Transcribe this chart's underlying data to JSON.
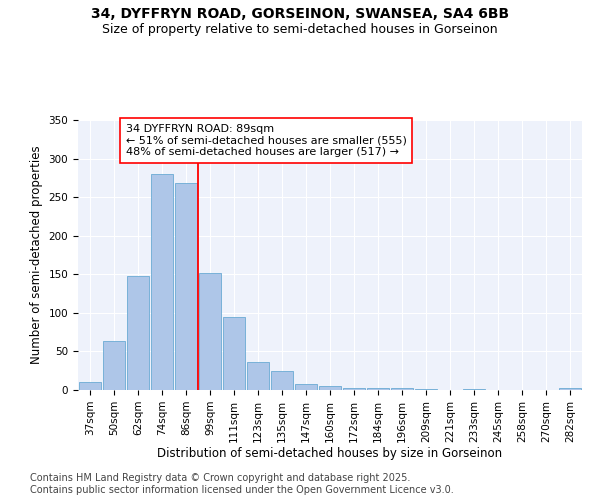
{
  "title_line1": "34, DYFFRYN ROAD, GORSEINON, SWANSEA, SA4 6BB",
  "title_line2": "Size of property relative to semi-detached houses in Gorseinon",
  "xlabel": "Distribution of semi-detached houses by size in Gorseinon",
  "ylabel": "Number of semi-detached properties",
  "categories": [
    "37sqm",
    "50sqm",
    "62sqm",
    "74sqm",
    "86sqm",
    "99sqm",
    "111sqm",
    "123sqm",
    "135sqm",
    "147sqm",
    "160sqm",
    "172sqm",
    "184sqm",
    "196sqm",
    "209sqm",
    "221sqm",
    "233sqm",
    "245sqm",
    "258sqm",
    "270sqm",
    "282sqm"
  ],
  "values": [
    10,
    63,
    148,
    280,
    268,
    152,
    95,
    36,
    24,
    8,
    5,
    3,
    3,
    3,
    1,
    0,
    1,
    0,
    0,
    0,
    2
  ],
  "bar_color": "#aec6e8",
  "bar_edge_color": "#6aaad4",
  "vline_x": 4.5,
  "vline_color": "red",
  "annotation_text": "34 DYFFRYN ROAD: 89sqm\n← 51% of semi-detached houses are smaller (555)\n48% of semi-detached houses are larger (517) →",
  "annotation_box_color": "white",
  "annotation_box_edge": "red",
  "ylim": [
    0,
    350
  ],
  "yticks": [
    0,
    50,
    100,
    150,
    200,
    250,
    300,
    350
  ],
  "footer_text": "Contains HM Land Registry data © Crown copyright and database right 2025.\nContains public sector information licensed under the Open Government Licence v3.0.",
  "bg_color": "#eef2fb",
  "title_fontsize": 10,
  "subtitle_fontsize": 9,
  "axis_label_fontsize": 8.5,
  "tick_fontsize": 7.5,
  "footer_fontsize": 7,
  "annot_fontsize": 8
}
